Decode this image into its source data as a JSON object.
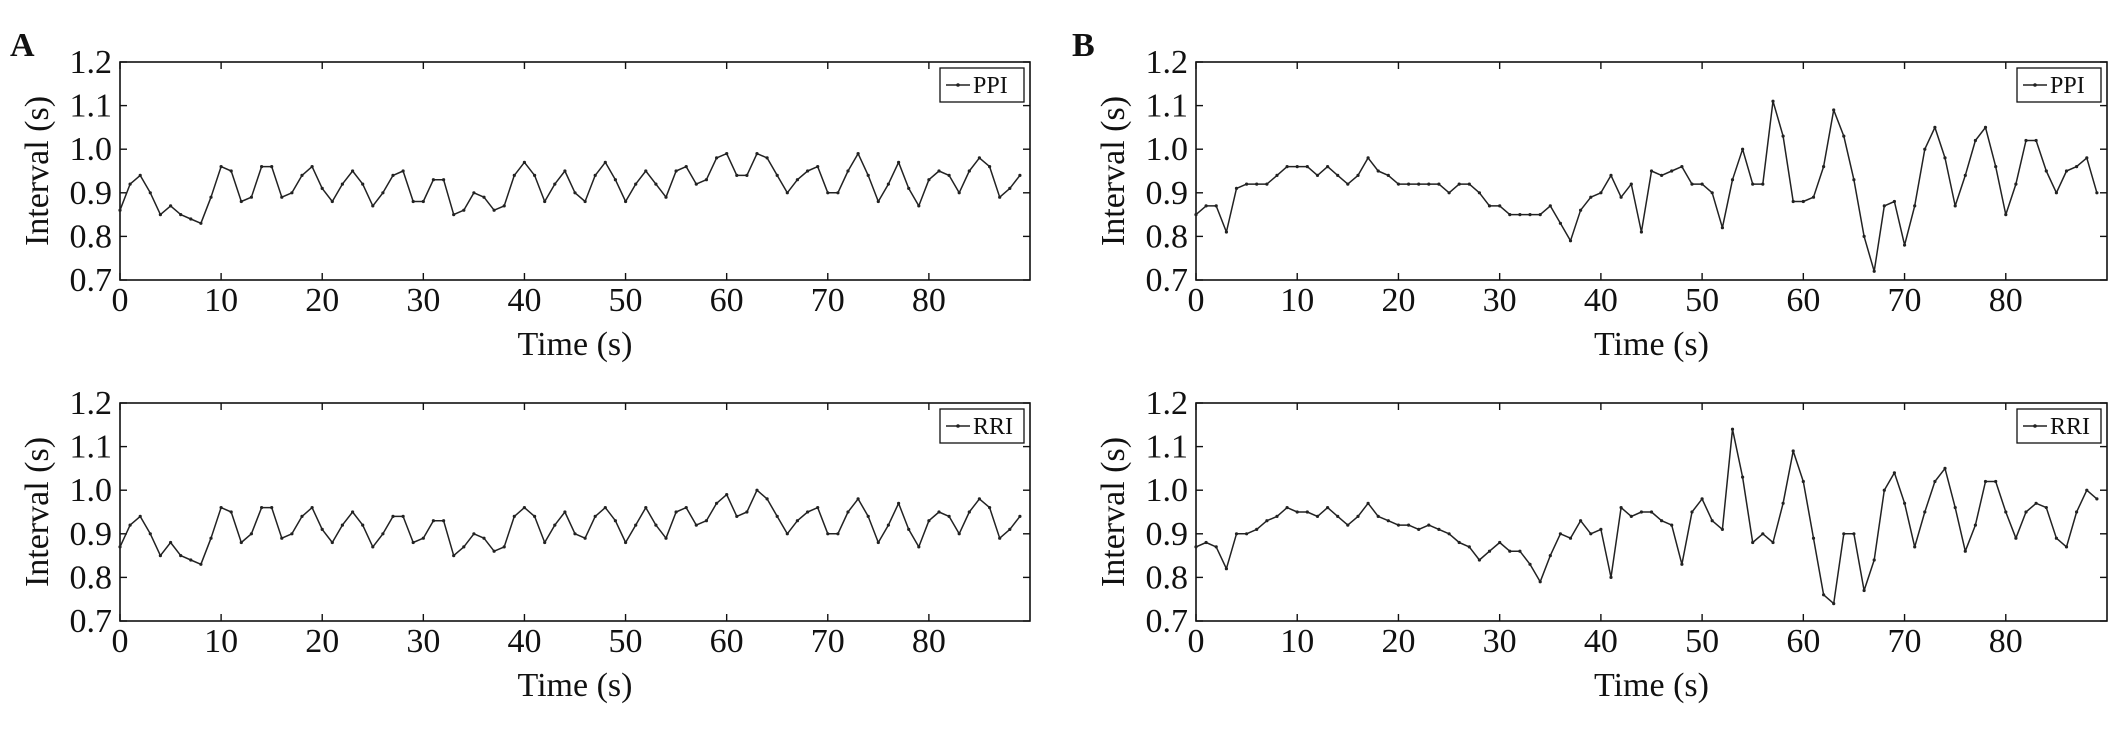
{
  "chart_data": [
    {
      "panel": "A",
      "type": "line",
      "xlabel": "Time (s)",
      "ylabel": "Interval (s)",
      "xlim": [
        0,
        90
      ],
      "ylim": [
        0.7,
        1.2
      ],
      "xticks": [
        "0",
        "10",
        "20",
        "30",
        "40",
        "50",
        "60",
        "70",
        "80"
      ],
      "yticks": [
        "0.7",
        "0.8",
        "0.9",
        "1.0",
        "1.1",
        "1.2"
      ],
      "grid": false,
      "legend_position": "top-right",
      "series": [
        {
          "name": "PPI",
          "x": [
            0,
            1,
            2,
            3,
            4,
            5,
            6,
            7,
            8,
            9,
            10,
            11,
            12,
            13,
            14,
            15,
            16,
            17,
            18,
            19,
            20,
            21,
            22,
            23,
            24,
            25,
            26,
            27,
            28,
            29,
            30,
            31,
            32,
            33,
            34,
            35,
            36,
            37,
            38,
            39,
            40,
            41,
            42,
            43,
            44,
            45,
            46,
            47,
            48,
            49,
            50,
            51,
            52,
            53,
            54,
            55,
            56,
            57,
            58,
            59,
            60,
            61,
            62,
            63,
            64,
            65,
            66,
            67,
            68,
            69,
            70,
            71,
            72,
            73,
            74,
            75,
            76,
            77,
            78,
            79,
            80,
            81,
            82,
            83,
            84,
            85,
            86,
            87,
            88,
            89
          ],
          "y": [
            0.86,
            0.92,
            0.94,
            0.9,
            0.85,
            0.87,
            0.85,
            0.84,
            0.83,
            0.89,
            0.96,
            0.95,
            0.88,
            0.89,
            0.96,
            0.96,
            0.89,
            0.9,
            0.94,
            0.96,
            0.91,
            0.88,
            0.92,
            0.95,
            0.92,
            0.87,
            0.9,
            0.94,
            0.95,
            0.88,
            0.88,
            0.93,
            0.93,
            0.85,
            0.86,
            0.9,
            0.89,
            0.86,
            0.87,
            0.94,
            0.97,
            0.94,
            0.88,
            0.92,
            0.95,
            0.9,
            0.88,
            0.94,
            0.97,
            0.93,
            0.88,
            0.92,
            0.95,
            0.92,
            0.89,
            0.95,
            0.96,
            0.92,
            0.93,
            0.98,
            0.99,
            0.94,
            0.94,
            0.99,
            0.98,
            0.94,
            0.9,
            0.93,
            0.95,
            0.96,
            0.9,
            0.9,
            0.95,
            0.99,
            0.94,
            0.88,
            0.92,
            0.97,
            0.91,
            0.87,
            0.93,
            0.95,
            0.94,
            0.9,
            0.95,
            0.98,
            0.96,
            0.89,
            0.91,
            0.94
          ]
        }
      ]
    },
    {
      "panel": "A",
      "type": "line",
      "xlabel": "Time (s)",
      "ylabel": "Interval (s)",
      "xlim": [
        0,
        90
      ],
      "ylim": [
        0.7,
        1.2
      ],
      "xticks": [
        "0",
        "10",
        "20",
        "30",
        "40",
        "50",
        "60",
        "70",
        "80"
      ],
      "yticks": [
        "0.7",
        "0.8",
        "0.9",
        "1.0",
        "1.1",
        "1.2"
      ],
      "grid": false,
      "legend_position": "top-right",
      "series": [
        {
          "name": "RRI",
          "x": [
            0,
            1,
            2,
            3,
            4,
            5,
            6,
            7,
            8,
            9,
            10,
            11,
            12,
            13,
            14,
            15,
            16,
            17,
            18,
            19,
            20,
            21,
            22,
            23,
            24,
            25,
            26,
            27,
            28,
            29,
            30,
            31,
            32,
            33,
            34,
            35,
            36,
            37,
            38,
            39,
            40,
            41,
            42,
            43,
            44,
            45,
            46,
            47,
            48,
            49,
            50,
            51,
            52,
            53,
            54,
            55,
            56,
            57,
            58,
            59,
            60,
            61,
            62,
            63,
            64,
            65,
            66,
            67,
            68,
            69,
            70,
            71,
            72,
            73,
            74,
            75,
            76,
            77,
            78,
            79,
            80,
            81,
            82,
            83,
            84,
            85,
            86,
            87,
            88,
            89
          ],
          "y": [
            0.87,
            0.92,
            0.94,
            0.9,
            0.85,
            0.88,
            0.85,
            0.84,
            0.83,
            0.89,
            0.96,
            0.95,
            0.88,
            0.9,
            0.96,
            0.96,
            0.89,
            0.9,
            0.94,
            0.96,
            0.91,
            0.88,
            0.92,
            0.95,
            0.92,
            0.87,
            0.9,
            0.94,
            0.94,
            0.88,
            0.89,
            0.93,
            0.93,
            0.85,
            0.87,
            0.9,
            0.89,
            0.86,
            0.87,
            0.94,
            0.96,
            0.94,
            0.88,
            0.92,
            0.95,
            0.9,
            0.89,
            0.94,
            0.96,
            0.93,
            0.88,
            0.92,
            0.96,
            0.92,
            0.89,
            0.95,
            0.96,
            0.92,
            0.93,
            0.97,
            0.99,
            0.94,
            0.95,
            1.0,
            0.98,
            0.94,
            0.9,
            0.93,
            0.95,
            0.96,
            0.9,
            0.9,
            0.95,
            0.98,
            0.94,
            0.88,
            0.92,
            0.97,
            0.91,
            0.87,
            0.93,
            0.95,
            0.94,
            0.9,
            0.95,
            0.98,
            0.96,
            0.89,
            0.91,
            0.94
          ]
        }
      ]
    },
    {
      "panel": "B",
      "type": "line",
      "xlabel": "Time (s)",
      "ylabel": "Interval (s)",
      "xlim": [
        0,
        90
      ],
      "ylim": [
        0.7,
        1.2
      ],
      "xticks": [
        "0",
        "10",
        "20",
        "30",
        "40",
        "50",
        "60",
        "70",
        "80"
      ],
      "yticks": [
        "0.7",
        "0.8",
        "0.9",
        "1.0",
        "1.1",
        "1.2"
      ],
      "grid": false,
      "legend_position": "top-right",
      "series": [
        {
          "name": "PPI",
          "x": [
            0,
            1,
            2,
            3,
            4,
            5,
            6,
            7,
            8,
            9,
            10,
            11,
            12,
            13,
            14,
            15,
            16,
            17,
            18,
            19,
            20,
            21,
            22,
            23,
            24,
            25,
            26,
            27,
            28,
            29,
            30,
            31,
            32,
            33,
            34,
            35,
            36,
            37,
            38,
            39,
            40,
            41,
            42,
            43,
            44,
            45,
            46,
            47,
            48,
            49,
            50,
            51,
            52,
            53,
            54,
            55,
            56,
            57,
            58,
            59,
            60,
            61,
            62,
            63,
            64,
            65,
            66,
            67,
            68,
            69,
            70,
            71,
            72,
            73,
            74,
            75,
            76,
            77,
            78,
            79,
            80,
            81,
            82,
            83,
            84,
            85,
            86,
            87,
            88,
            89
          ],
          "y": [
            0.85,
            0.87,
            0.87,
            0.81,
            0.91,
            0.92,
            0.92,
            0.92,
            0.94,
            0.96,
            0.96,
            0.96,
            0.94,
            0.96,
            0.94,
            0.92,
            0.94,
            0.98,
            0.95,
            0.94,
            0.92,
            0.92,
            0.92,
            0.92,
            0.92,
            0.9,
            0.92,
            0.92,
            0.9,
            0.87,
            0.87,
            0.85,
            0.85,
            0.85,
            0.85,
            0.87,
            0.83,
            0.79,
            0.86,
            0.89,
            0.9,
            0.94,
            0.89,
            0.92,
            0.81,
            0.95,
            0.94,
            0.95,
            0.96,
            0.92,
            0.92,
            0.9,
            0.82,
            0.93,
            1.0,
            0.92,
            0.92,
            1.11,
            1.03,
            0.88,
            0.88,
            0.89,
            0.96,
            1.09,
            1.03,
            0.93,
            0.8,
            0.72,
            0.87,
            0.88,
            0.78,
            0.87,
            1.0,
            1.05,
            0.98,
            0.87,
            0.94,
            1.02,
            1.05,
            0.96,
            0.85,
            0.92,
            1.02,
            1.02,
            0.95,
            0.9,
            0.95,
            0.96,
            0.98,
            0.9
          ]
        }
      ]
    },
    {
      "panel": "B",
      "type": "line",
      "xlabel": "Time (s)",
      "ylabel": "Interval (s)",
      "xlim": [
        0,
        90
      ],
      "ylim": [
        0.7,
        1.2
      ],
      "xticks": [
        "0",
        "10",
        "20",
        "30",
        "40",
        "50",
        "60",
        "70",
        "80"
      ],
      "yticks": [
        "0.7",
        "0.8",
        "0.9",
        "1.0",
        "1.1",
        "1.2"
      ],
      "grid": false,
      "legend_position": "top-right",
      "series": [
        {
          "name": "RRI",
          "x": [
            0,
            1,
            2,
            3,
            4,
            5,
            6,
            7,
            8,
            9,
            10,
            11,
            12,
            13,
            14,
            15,
            16,
            17,
            18,
            19,
            20,
            21,
            22,
            23,
            24,
            25,
            26,
            27,
            28,
            29,
            30,
            31,
            32,
            33,
            34,
            35,
            36,
            37,
            38,
            39,
            40,
            41,
            42,
            43,
            44,
            45,
            46,
            47,
            48,
            49,
            50,
            51,
            52,
            53,
            54,
            55,
            56,
            57,
            58,
            59,
            60,
            61,
            62,
            63,
            64,
            65,
            66,
            67,
            68,
            69,
            70,
            71,
            72,
            73,
            74,
            75,
            76,
            77,
            78,
            79,
            80,
            81,
            82,
            83,
            84,
            85,
            86,
            87,
            88,
            89
          ],
          "y": [
            0.87,
            0.88,
            0.87,
            0.82,
            0.9,
            0.9,
            0.91,
            0.93,
            0.94,
            0.96,
            0.95,
            0.95,
            0.94,
            0.96,
            0.94,
            0.92,
            0.94,
            0.97,
            0.94,
            0.93,
            0.92,
            0.92,
            0.91,
            0.92,
            0.91,
            0.9,
            0.88,
            0.87,
            0.84,
            0.86,
            0.88,
            0.86,
            0.86,
            0.83,
            0.79,
            0.85,
            0.9,
            0.89,
            0.93,
            0.9,
            0.91,
            0.8,
            0.96,
            0.94,
            0.95,
            0.95,
            0.93,
            0.92,
            0.83,
            0.95,
            0.98,
            0.93,
            0.91,
            1.14,
            1.03,
            0.88,
            0.9,
            0.88,
            0.97,
            1.09,
            1.02,
            0.89,
            0.76,
            0.74,
            0.9,
            0.9,
            0.77,
            0.84,
            1.0,
            1.04,
            0.97,
            0.87,
            0.95,
            1.02,
            1.05,
            0.96,
            0.86,
            0.92,
            1.02,
            1.02,
            0.95,
            0.89,
            0.95,
            0.97,
            0.96,
            0.89,
            0.87,
            0.95,
            1.0,
            0.98
          ]
        }
      ]
    }
  ],
  "panel_labels": [
    "A",
    "B"
  ]
}
